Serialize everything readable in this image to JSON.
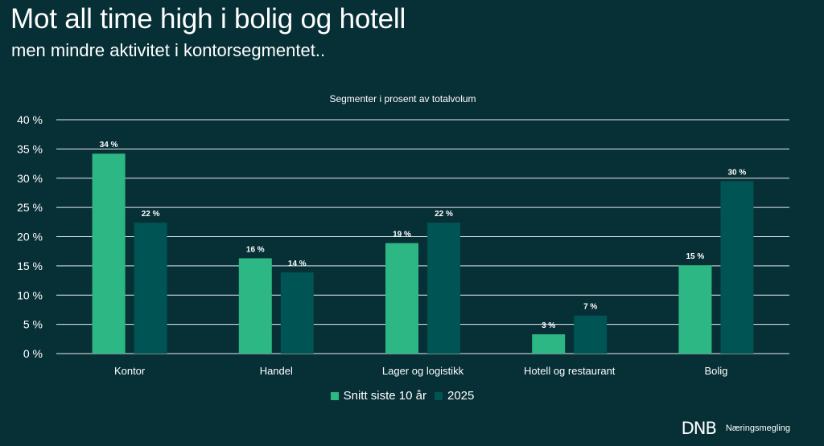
{
  "header": {
    "title": "Mot all time high i bolig og hotell",
    "subtitle": "men mindre aktivitet i kontorsegmentet.."
  },
  "brand": {
    "logo": "DNB",
    "name": "Næringsmegling"
  },
  "colors": {
    "background": "#062f36",
    "series1": "#2db784",
    "series2": "#005453",
    "grid": "#e8eef0"
  },
  "chart_data": {
    "type": "bar",
    "title": "Segmenter i prosent av totalvolum",
    "categories": [
      "Kontor",
      "Handel",
      "Lager og logistikk",
      "Hotell og restaurant",
      "Bolig"
    ],
    "series": [
      {
        "name": "Snitt siste 10 år",
        "values": [
          34.2,
          16.3,
          18.9,
          3.3,
          15.1
        ],
        "labels": [
          "34 %",
          "16 %",
          "19 %",
          "3 %",
          "15 %"
        ]
      },
      {
        "name": "2025",
        "values": [
          22.4,
          13.9,
          22.4,
          6.5,
          29.5
        ],
        "labels": [
          "22 %",
          "14 %",
          "22 %",
          "7 %",
          "30 %"
        ]
      }
    ],
    "ylim": [
      0,
      40
    ],
    "yticks": [
      "0 %",
      "5 %",
      "10 %",
      "15 %",
      "20 %",
      "25 %",
      "30 %",
      "35 %",
      "40 %"
    ],
    "grid": true,
    "legend": "bottom"
  }
}
